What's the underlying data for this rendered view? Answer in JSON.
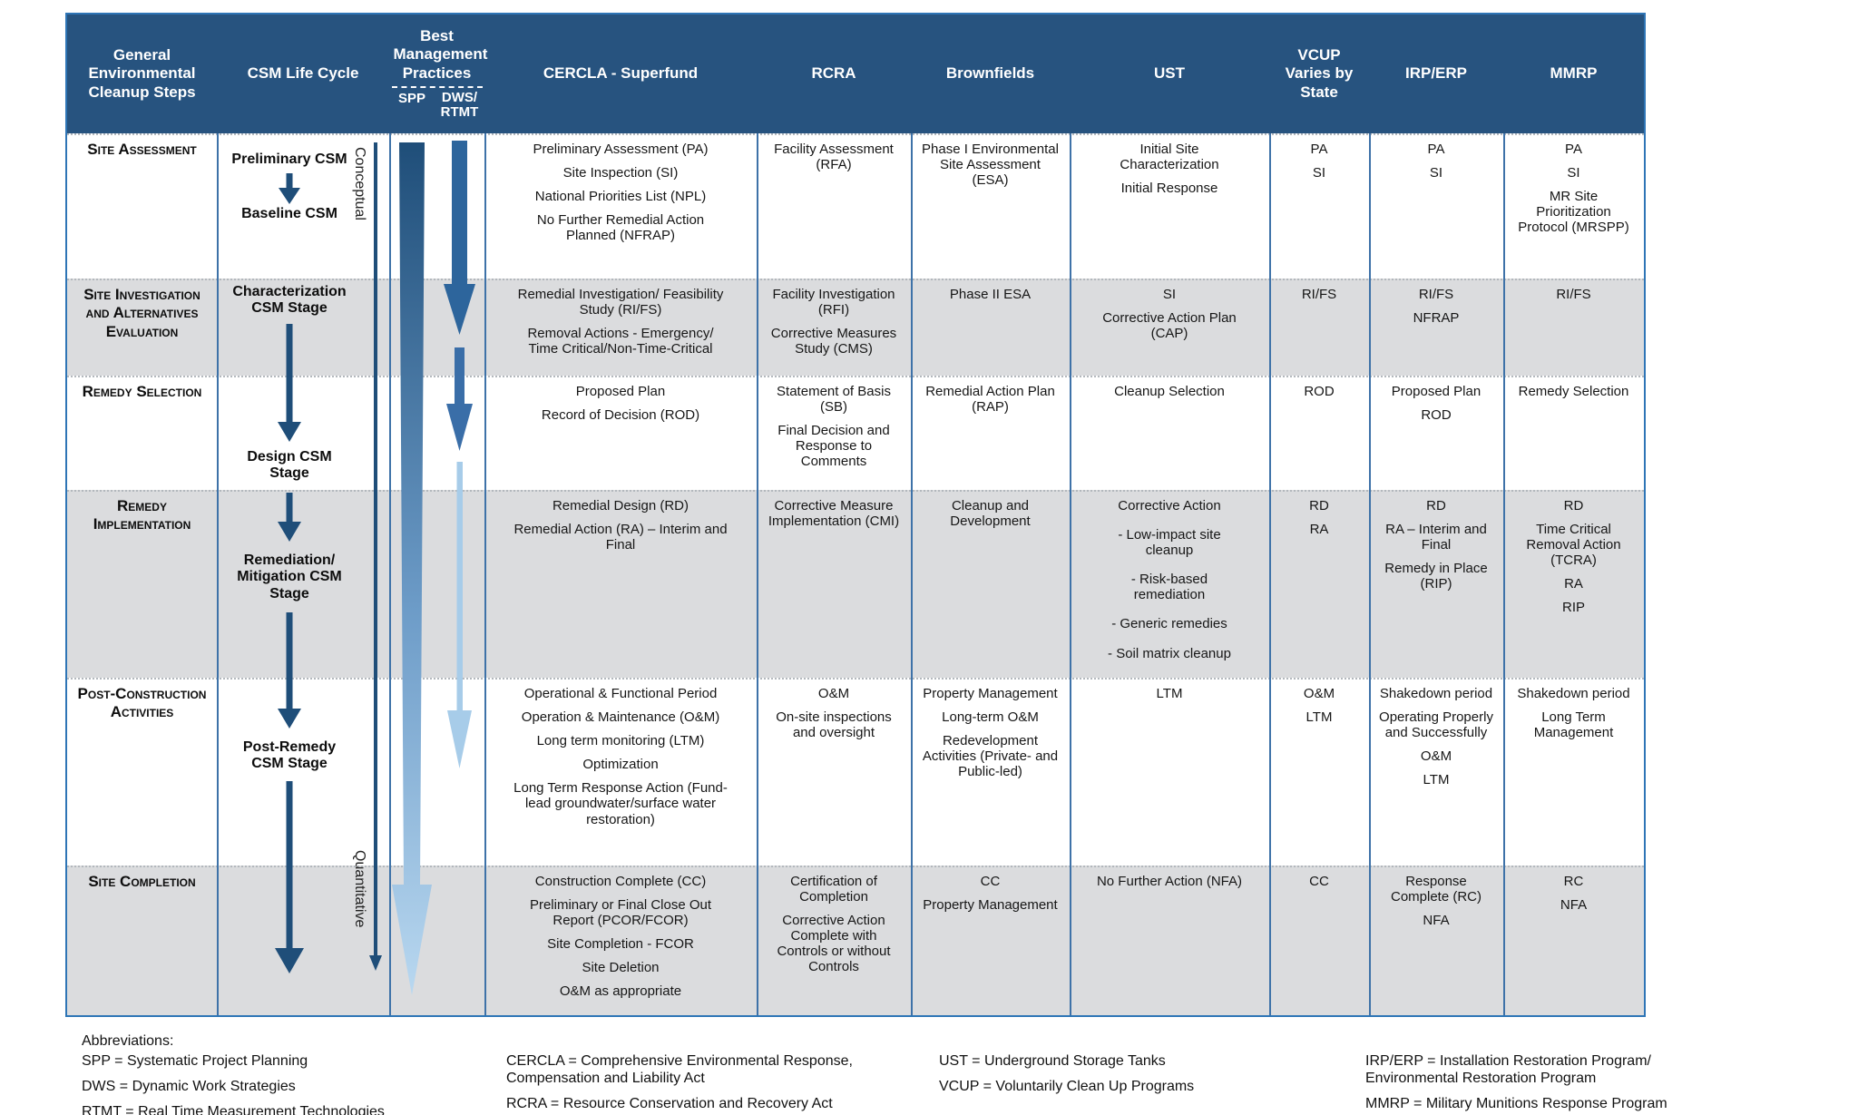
{
  "table": {
    "header": {
      "steps": "General Environmental Cleanup Steps",
      "csm": "CSM Life Cycle",
      "bmp": "Best Management Practices",
      "bmp_sub": {
        "spp": "SPP",
        "dws": "DWS/\nRTMT"
      },
      "cercla": "CERCLA - Superfund",
      "rcra": "RCRA",
      "brownfields": "Brownfields",
      "ust": "UST",
      "vcup": "VCUP Varies by State",
      "irp": "IRP/ERP",
      "mmrp": "MMRP"
    },
    "rows": [
      {
        "step": "Site Assessment",
        "cercla": [
          "Preliminary Assessment (PA)",
          "Site Inspection (SI)",
          "National Priorities List (NPL)",
          "No Further Remedial Action Planned (NFRAP)"
        ],
        "rcra": [
          "Facility Assessment (RFA)"
        ],
        "brownfields": [
          "Phase I Environmental Site Assessment (ESA)"
        ],
        "ust": [
          "Initial Site Characterization",
          "Initial Response"
        ],
        "vcup": [
          "PA",
          "SI"
        ],
        "irp": [
          "PA",
          "SI"
        ],
        "mmrp": [
          "PA",
          "SI",
          "MR Site Prioritization Protocol (MRSPP)"
        ]
      },
      {
        "step": "Site Investigation and Alternatives Evaluation",
        "cercla": [
          "Remedial Investigation/ Feasibility Study (RI/FS)",
          "Removal Actions - Emergency/ Time Critical/Non-Time-Critical"
        ],
        "rcra": [
          "Facility Investigation (RFI)",
          "Corrective Measures Study (CMS)"
        ],
        "brownfields": [
          "Phase II ESA"
        ],
        "ust": [
          "SI",
          "Corrective Action Plan (CAP)"
        ],
        "vcup": [
          "RI/FS"
        ],
        "irp": [
          "RI/FS",
          "NFRAP"
        ],
        "mmrp": [
          "RI/FS"
        ]
      },
      {
        "step": "Remedy Selection",
        "cercla": [
          "Proposed Plan",
          "Record of Decision (ROD)"
        ],
        "rcra": [
          "Statement of Basis (SB)",
          "Final Decision and Response to Comments"
        ],
        "brownfields": [
          "Remedial Action Plan (RAP)"
        ],
        "ust": [
          "Cleanup Selection"
        ],
        "vcup": [
          "ROD"
        ],
        "irp": [
          "Proposed Plan",
          "ROD"
        ],
        "mmrp": [
          "Remedy Selection"
        ]
      },
      {
        "step": "Remedy Implementation",
        "cercla": [
          "Remedial Design (RD)",
          "Remedial Action (RA) – Interim and Final"
        ],
        "rcra": [
          "Corrective Measure Implementation (CMI)"
        ],
        "brownfields": [
          "Cleanup and Development"
        ],
        "ust": [
          "Corrective Action",
          "- Low-impact site cleanup",
          "- Risk-based remediation",
          "- Generic remedies",
          "- Soil matrix cleanup"
        ],
        "vcup": [
          "RD",
          "RA"
        ],
        "irp": [
          "RD",
          "RA – Interim and Final",
          "Remedy in Place (RIP)"
        ],
        "mmrp": [
          "RD",
          "Time Critical Removal Action (TCRA)",
          "RA",
          "RIP"
        ]
      },
      {
        "step": "Post-Construction Activities",
        "cercla": [
          "Operational & Functional Period",
          "Operation & Maintenance (O&M)",
          "Long term monitoring (LTM)",
          "Optimization",
          "Long Term Response Action (Fund-lead groundwater/surface water restoration)"
        ],
        "rcra": [
          "O&M",
          "On-site inspections and oversight"
        ],
        "brownfields": [
          "Property Management",
          "Long-term O&M",
          "Redevelopment Activities (Private- and Public-led)"
        ],
        "ust": [
          "LTM"
        ],
        "vcup": [
          "O&M",
          "LTM"
        ],
        "irp": [
          "Shakedown period",
          "Operating Properly and Successfully",
          "O&M",
          "LTM"
        ],
        "mmrp": [
          "Shakedown period",
          "Long Term Management"
        ]
      },
      {
        "step": "Site Completion",
        "cercla": [
          "Construction Complete (CC)",
          "Preliminary or Final Close Out Report (PCOR/FCOR)",
          "Site Completion - FCOR",
          "Site Deletion",
          "O&M as appropriate"
        ],
        "rcra": [
          "Certification of Completion",
          "Corrective Action Complete with Controls or without Controls"
        ],
        "brownfields": [
          "CC",
          "Property Management"
        ],
        "ust": [
          "No Further Action (NFA)"
        ],
        "vcup": [
          "CC"
        ],
        "irp": [
          "Response Complete (RC)",
          "NFA"
        ],
        "mmrp": [
          "RC",
          "NFA"
        ]
      }
    ]
  },
  "csm_column": {
    "stages": [
      "Preliminary CSM",
      "Baseline CSM",
      "Characterization CSM Stage",
      "Design CSM Stage",
      "Remediation/ Mitigation CSM Stage",
      "Post-Remedy CSM Stage"
    ],
    "axis_top": "Conceptual",
    "axis_bottom": "Quantitative"
  },
  "footer": {
    "title": "Abbreviations:",
    "col1": [
      "SPP = Systematic Project Planning",
      "DWS = Dynamic Work Strategies",
      "RTMT = Real Time Measurement Technologies"
    ],
    "col2": [
      "CERCLA = Comprehensive Environmental Response, Compensation and Liability Act",
      "RCRA = Resource Conservation and Recovery Act"
    ],
    "col3": [
      "UST = Underground Storage Tanks",
      "VCUP = Voluntarily Clean Up Programs"
    ],
    "col4": [
      "IRP/ERP = Installation Restoration Program/ Environmental Restoration Program",
      "MMRP = Military Munitions Response Program"
    ]
  },
  "colors": {
    "header_bg": "#27537f",
    "stripe_gray": "#dbdcde",
    "grid_border": "#2e75b6",
    "arrow_dark": "#1f4e79",
    "arrow_mid": "#2e75b6",
    "arrow_light": "#a7cce9"
  }
}
